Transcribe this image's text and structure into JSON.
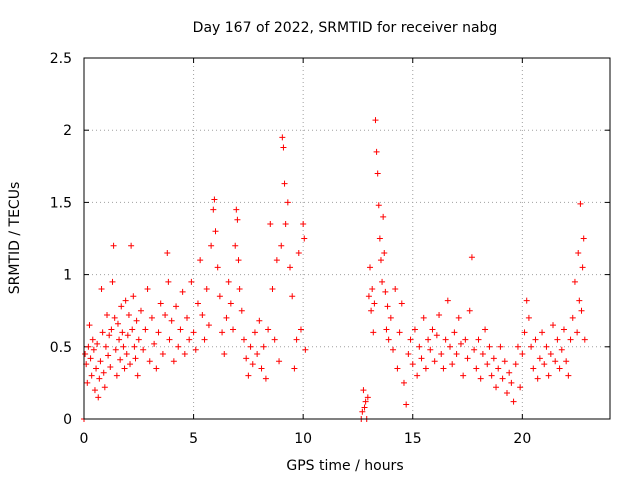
{
  "chart_data": {
    "type": "scatter",
    "title": "Day 167 of 2022, SRMTID for receiver nabg",
    "xlabel": "GPS time / hours",
    "ylabel": "SRMTID / TECUs",
    "xlim": [
      0,
      24
    ],
    "ylim": [
      0,
      2.5
    ],
    "xticks": [
      0,
      5,
      10,
      15,
      20
    ],
    "xtick_labels": [
      "0",
      "5",
      "10",
      "15",
      "20"
    ],
    "yticks": [
      0,
      0.5,
      1,
      1.5,
      2,
      2.5
    ],
    "ytick_labels": [
      "0",
      "0.5",
      "1",
      "1.5",
      "2",
      "2.5"
    ],
    "grid": true,
    "marker": "+",
    "color": "#ff0000",
    "series": [
      {
        "name": "SRMTID",
        "points": [
          [
            0.0,
            0.0
          ],
          [
            0.05,
            0.45
          ],
          [
            0.1,
            0.38
          ],
          [
            0.15,
            0.25
          ],
          [
            0.2,
            0.5
          ],
          [
            0.25,
            0.65
          ],
          [
            0.3,
            0.42
          ],
          [
            0.35,
            0.3
          ],
          [
            0.4,
            0.55
          ],
          [
            0.45,
            0.48
          ],
          [
            0.5,
            0.2
          ],
          [
            0.55,
            0.35
          ],
          [
            0.6,
            0.52
          ],
          [
            0.65,
            0.15
          ],
          [
            0.7,
            0.28
          ],
          [
            0.75,
            0.4
          ],
          [
            0.8,
            0.9
          ],
          [
            0.85,
            0.6
          ],
          [
            0.9,
            0.32
          ],
          [
            0.95,
            0.22
          ],
          [
            1.0,
            0.5
          ],
          [
            1.05,
            0.72
          ],
          [
            1.1,
            0.44
          ],
          [
            1.15,
            0.58
          ],
          [
            1.2,
            0.36
          ],
          [
            1.25,
            0.62
          ],
          [
            1.3,
            0.95
          ],
          [
            1.35,
            1.2
          ],
          [
            1.4,
            0.7
          ],
          [
            1.45,
            0.48
          ],
          [
            1.5,
            0.3
          ],
          [
            1.55,
            0.66
          ],
          [
            1.6,
            0.55
          ],
          [
            1.65,
            0.41
          ],
          [
            1.7,
            0.78
          ],
          [
            1.75,
            0.6
          ],
          [
            1.8,
            0.5
          ],
          [
            1.85,
            0.35
          ],
          [
            1.9,
            0.82
          ],
          [
            1.95,
            0.45
          ],
          [
            2.0,
            0.58
          ],
          [
            2.05,
            0.72
          ],
          [
            2.1,
            0.38
          ],
          [
            2.15,
            1.2
          ],
          [
            2.2,
            0.62
          ],
          [
            2.25,
            0.85
          ],
          [
            2.3,
            0.5
          ],
          [
            2.35,
            0.42
          ],
          [
            2.4,
            0.68
          ],
          [
            2.45,
            0.3
          ],
          [
            2.5,
            0.55
          ],
          [
            2.6,
            0.75
          ],
          [
            2.7,
            0.48
          ],
          [
            2.8,
            0.62
          ],
          [
            2.9,
            0.9
          ],
          [
            3.0,
            0.4
          ],
          [
            3.1,
            0.7
          ],
          [
            3.2,
            0.52
          ],
          [
            3.3,
            0.35
          ],
          [
            3.4,
            0.6
          ],
          [
            3.5,
            0.8
          ],
          [
            3.6,
            0.45
          ],
          [
            3.7,
            0.72
          ],
          [
            3.8,
            1.15
          ],
          [
            3.85,
            0.95
          ],
          [
            3.9,
            0.55
          ],
          [
            4.0,
            0.68
          ],
          [
            4.1,
            0.4
          ],
          [
            4.2,
            0.78
          ],
          [
            4.3,
            0.5
          ],
          [
            4.4,
            0.62
          ],
          [
            4.5,
            0.88
          ],
          [
            4.6,
            0.45
          ],
          [
            4.7,
            0.7
          ],
          [
            4.8,
            0.55
          ],
          [
            4.9,
            0.95
          ],
          [
            5.0,
            0.6
          ],
          [
            5.1,
            0.48
          ],
          [
            5.2,
            0.8
          ],
          [
            5.3,
            1.1
          ],
          [
            5.4,
            0.72
          ],
          [
            5.5,
            0.55
          ],
          [
            5.6,
            0.9
          ],
          [
            5.7,
            0.65
          ],
          [
            5.8,
            1.2
          ],
          [
            5.9,
            1.45
          ],
          [
            5.95,
            1.52
          ],
          [
            6.0,
            1.3
          ],
          [
            6.1,
            1.05
          ],
          [
            6.2,
            0.85
          ],
          [
            6.3,
            0.6
          ],
          [
            6.4,
            0.45
          ],
          [
            6.5,
            0.7
          ],
          [
            6.6,
            0.95
          ],
          [
            6.7,
            0.8
          ],
          [
            6.8,
            0.62
          ],
          [
            6.9,
            1.2
          ],
          [
            6.95,
            1.45
          ],
          [
            7.0,
            1.38
          ],
          [
            7.05,
            1.1
          ],
          [
            7.1,
            0.9
          ],
          [
            7.2,
            0.75
          ],
          [
            7.3,
            0.55
          ],
          [
            7.4,
            0.42
          ],
          [
            7.5,
            0.3
          ],
          [
            7.6,
            0.5
          ],
          [
            7.7,
            0.38
          ],
          [
            7.8,
            0.6
          ],
          [
            7.9,
            0.45
          ],
          [
            8.0,
            0.68
          ],
          [
            8.1,
            0.35
          ],
          [
            8.2,
            0.5
          ],
          [
            8.3,
            0.28
          ],
          [
            8.4,
            0.62
          ],
          [
            8.5,
            1.35
          ],
          [
            8.6,
            0.9
          ],
          [
            8.7,
            0.55
          ],
          [
            8.8,
            1.1
          ],
          [
            8.9,
            0.4
          ],
          [
            9.0,
            1.2
          ],
          [
            9.05,
            1.95
          ],
          [
            9.1,
            1.88
          ],
          [
            9.15,
            1.63
          ],
          [
            9.2,
            1.35
          ],
          [
            9.3,
            1.5
          ],
          [
            9.4,
            1.05
          ],
          [
            9.5,
            0.85
          ],
          [
            9.6,
            0.35
          ],
          [
            9.7,
            0.55
          ],
          [
            9.8,
            1.15
          ],
          [
            9.9,
            0.62
          ],
          [
            10.0,
            1.35
          ],
          [
            10.05,
            1.25
          ],
          [
            10.1,
            0.48
          ],
          [
            12.65,
            0.0
          ],
          [
            12.7,
            0.05
          ],
          [
            12.75,
            0.2
          ],
          [
            12.8,
            0.08
          ],
          [
            12.85,
            0.12
          ],
          [
            12.9,
            0.0
          ],
          [
            12.95,
            0.15
          ],
          [
            13.0,
            0.85
          ],
          [
            13.05,
            1.05
          ],
          [
            13.1,
            0.75
          ],
          [
            13.15,
            0.9
          ],
          [
            13.2,
            0.6
          ],
          [
            13.25,
            0.8
          ],
          [
            13.3,
            2.07
          ],
          [
            13.35,
            1.85
          ],
          [
            13.4,
            1.7
          ],
          [
            13.45,
            1.48
          ],
          [
            13.5,
            1.25
          ],
          [
            13.55,
            1.1
          ],
          [
            13.6,
            0.95
          ],
          [
            13.65,
            1.4
          ],
          [
            13.7,
            1.15
          ],
          [
            13.75,
            0.88
          ],
          [
            13.8,
            0.62
          ],
          [
            13.85,
            0.78
          ],
          [
            13.9,
            0.55
          ],
          [
            14.0,
            0.7
          ],
          [
            14.1,
            0.48
          ],
          [
            14.2,
            0.9
          ],
          [
            14.3,
            0.35
          ],
          [
            14.4,
            0.6
          ],
          [
            14.5,
            0.8
          ],
          [
            14.6,
            0.25
          ],
          [
            14.7,
            0.1
          ],
          [
            14.8,
            0.45
          ],
          [
            14.9,
            0.55
          ],
          [
            15.0,
            0.38
          ],
          [
            15.1,
            0.62
          ],
          [
            15.2,
            0.3
          ],
          [
            15.3,
            0.5
          ],
          [
            15.4,
            0.42
          ],
          [
            15.5,
            0.7
          ],
          [
            15.6,
            0.35
          ],
          [
            15.7,
            0.55
          ],
          [
            15.8,
            0.48
          ],
          [
            15.9,
            0.62
          ],
          [
            16.0,
            0.4
          ],
          [
            16.1,
            0.58
          ],
          [
            16.2,
            0.72
          ],
          [
            16.3,
            0.45
          ],
          [
            16.4,
            0.35
          ],
          [
            16.5,
            0.55
          ],
          [
            16.6,
            0.82
          ],
          [
            16.7,
            0.5
          ],
          [
            16.8,
            0.38
          ],
          [
            16.9,
            0.6
          ],
          [
            17.0,
            0.45
          ],
          [
            17.1,
            0.7
          ],
          [
            17.2,
            0.52
          ],
          [
            17.3,
            0.3
          ],
          [
            17.4,
            0.55
          ],
          [
            17.5,
            0.42
          ],
          [
            17.6,
            0.75
          ],
          [
            17.7,
            1.12
          ],
          [
            17.8,
            0.48
          ],
          [
            17.9,
            0.35
          ],
          [
            18.0,
            0.55
          ],
          [
            18.1,
            0.28
          ],
          [
            18.2,
            0.45
          ],
          [
            18.3,
            0.62
          ],
          [
            18.4,
            0.38
          ],
          [
            18.5,
            0.5
          ],
          [
            18.6,
            0.3
          ],
          [
            18.7,
            0.42
          ],
          [
            18.8,
            0.22
          ],
          [
            18.9,
            0.35
          ],
          [
            19.0,
            0.5
          ],
          [
            19.1,
            0.28
          ],
          [
            19.2,
            0.4
          ],
          [
            19.3,
            0.18
          ],
          [
            19.4,
            0.32
          ],
          [
            19.5,
            0.25
          ],
          [
            19.6,
            0.12
          ],
          [
            19.7,
            0.38
          ],
          [
            19.8,
            0.5
          ],
          [
            19.9,
            0.22
          ],
          [
            20.0,
            0.45
          ],
          [
            20.1,
            0.6
          ],
          [
            20.2,
            0.82
          ],
          [
            20.3,
            0.7
          ],
          [
            20.4,
            0.5
          ],
          [
            20.5,
            0.35
          ],
          [
            20.6,
            0.55
          ],
          [
            20.7,
            0.28
          ],
          [
            20.8,
            0.42
          ],
          [
            20.9,
            0.6
          ],
          [
            21.0,
            0.38
          ],
          [
            21.1,
            0.5
          ],
          [
            21.2,
            0.3
          ],
          [
            21.3,
            0.45
          ],
          [
            21.4,
            0.65
          ],
          [
            21.5,
            0.4
          ],
          [
            21.6,
            0.55
          ],
          [
            21.7,
            0.35
          ],
          [
            21.8,
            0.48
          ],
          [
            21.9,
            0.62
          ],
          [
            22.0,
            0.4
          ],
          [
            22.1,
            0.3
          ],
          [
            22.2,
            0.55
          ],
          [
            22.3,
            0.7
          ],
          [
            22.4,
            0.95
          ],
          [
            22.5,
            0.6
          ],
          [
            22.55,
            1.15
          ],
          [
            22.6,
            0.82
          ],
          [
            22.65,
            1.49
          ],
          [
            22.7,
            0.75
          ],
          [
            22.75,
            1.05
          ],
          [
            22.8,
            1.25
          ],
          [
            22.85,
            0.55
          ]
        ]
      }
    ]
  }
}
